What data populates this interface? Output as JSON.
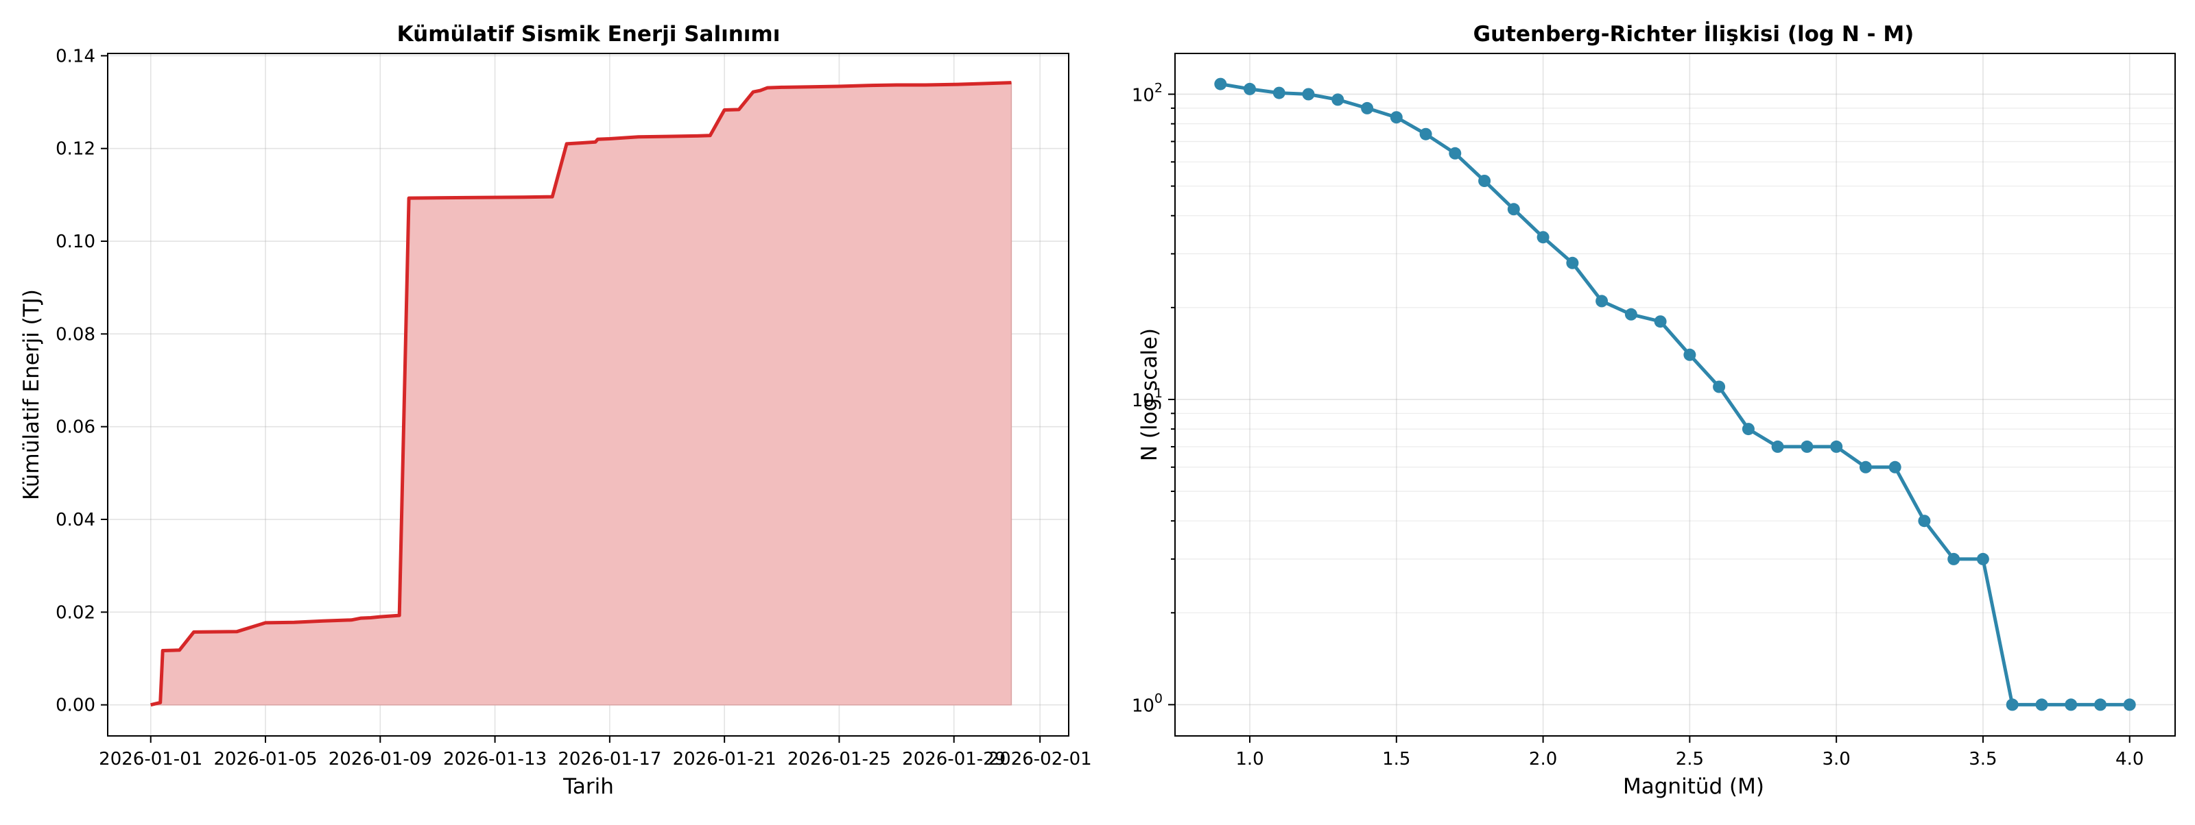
{
  "chart_data": [
    {
      "type": "area",
      "title": "Kümülatif Sismik Enerji Salınımı",
      "xlabel": "Tarih",
      "ylabel": "Kümülatif Enerji (TJ)",
      "x_tick_labels": [
        "2026-01-01",
        "2026-01-05",
        "2026-01-09",
        "2026-01-13",
        "2026-01-17",
        "2026-01-21",
        "2026-01-25",
        "2026-01-29",
        "2026-02-01"
      ],
      "y_tick_labels": [
        "0.00",
        "0.02",
        "0.04",
        "0.06",
        "0.08",
        "0.10",
        "0.12",
        "0.14"
      ],
      "xlim": [
        "2025-12-30T12:00",
        "2026-02-02T00:00"
      ],
      "ylim": [
        -0.0067,
        0.1405
      ],
      "grid": true,
      "line_color": "#d62728",
      "fill_color": "#f2bebe",
      "series": [
        {
          "x": [
            "2026-01-01T00:00",
            "2026-01-01T08:00",
            "2026-01-01T10:00",
            "2026-01-02T00:00",
            "2026-01-02T12:00",
            "2026-01-04T00:00",
            "2026-01-05T00:00",
            "2026-01-06T00:00",
            "2026-01-07T00:00",
            "2026-01-08T00:00",
            "2026-01-08T08:00",
            "2026-01-08T16:00",
            "2026-01-09T00:00",
            "2026-01-09T16:00",
            "2026-01-10T00:00",
            "2026-01-12T00:00",
            "2026-01-14T00:00",
            "2026-01-15T00:00",
            "2026-01-15T12:00",
            "2026-01-16T00:00",
            "2026-01-16T12:00",
            "2026-01-16T14:00",
            "2026-01-17T00:00",
            "2026-01-18T00:00",
            "2026-01-19T00:00",
            "2026-01-20T00:00",
            "2026-01-20T12:00",
            "2026-01-21T00:00",
            "2026-01-21T12:00",
            "2026-01-22T00:00",
            "2026-01-22T06:00",
            "2026-01-22T12:00",
            "2026-01-23T00:00",
            "2026-01-24T00:00",
            "2026-01-25T00:00",
            "2026-01-26T00:00",
            "2026-01-27T00:00",
            "2026-01-28T00:00",
            "2026-01-29T00:00",
            "2026-01-30T00:00",
            "2026-01-31T00:00"
          ],
          "y": [
            0.0,
            0.0005,
            0.0117,
            0.0118,
            0.0157,
            0.0158,
            0.0177,
            0.0178,
            0.0181,
            0.0183,
            0.0187,
            0.0188,
            0.019,
            0.0193,
            0.1093,
            0.1094,
            0.1095,
            0.1096,
            0.121,
            0.1212,
            0.1214,
            0.122,
            0.1221,
            0.1225,
            0.1226,
            0.1227,
            0.1228,
            0.1283,
            0.1284,
            0.1322,
            0.1325,
            0.1331,
            0.1332,
            0.1333,
            0.1334,
            0.1336,
            0.1337,
            0.1337,
            0.1338,
            0.134,
            0.1342
          ]
        }
      ]
    },
    {
      "type": "line",
      "title": "Gutenberg-Richter İlişkisi (log N - M)",
      "xlabel": "Magnitüd (M)",
      "ylabel": "N (log scale)",
      "y_scale": "log",
      "x_tick_labels": [
        "1.0",
        "1.5",
        "2.0",
        "2.5",
        "3.0",
        "3.5",
        "4.0"
      ],
      "y_tick_labels": [
        {
          "base": "10",
          "exp": "0"
        },
        {
          "base": "10",
          "exp": "1"
        },
        {
          "base": "10",
          "exp": "2"
        }
      ],
      "xlim": [
        0.745,
        4.155
      ],
      "ylim": [
        0.79,
        136
      ],
      "grid": true,
      "line_color": "#2e86ab",
      "series": [
        {
          "x": [
            0.9,
            1.0,
            1.1,
            1.2,
            1.3,
            1.4,
            1.5,
            1.6,
            1.7,
            1.8,
            1.9,
            2.0,
            2.1,
            2.2,
            2.3,
            2.4,
            2.5,
            2.6,
            2.7,
            2.8,
            2.9,
            3.0,
            3.1,
            3.2,
            3.3,
            3.4,
            3.5,
            3.6,
            3.7,
            3.8,
            3.9,
            4.0
          ],
          "y": [
            108,
            104,
            101,
            100,
            96,
            90,
            84,
            74,
            64,
            52,
            42,
            34,
            28,
            21,
            19,
            18,
            14,
            11,
            8,
            7,
            7,
            7,
            6,
            6,
            4,
            3,
            3,
            1,
            1,
            1,
            1,
            1
          ]
        }
      ]
    }
  ]
}
